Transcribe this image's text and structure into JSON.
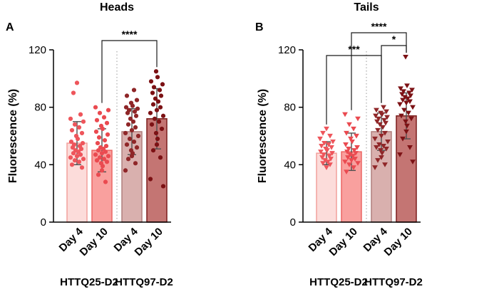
{
  "chart_data": [
    {
      "type": "bar",
      "panel_letter": "A",
      "title": "Heads",
      "ylabel": "Fluorescence (%)",
      "ylim": [
        0,
        120
      ],
      "yticks": [
        0,
        40,
        80,
        120
      ],
      "grid": false,
      "legend": "none",
      "marker": "circle",
      "categories": [
        "Day 4",
        "Day 10",
        "Day 4",
        "Day 10"
      ],
      "group_labels": [
        "HTTQ25-D2",
        "HTTQ97-D2"
      ],
      "separator_after": 1,
      "bars": [
        {
          "category": "Day 4",
          "group": "HTTQ25-D2",
          "mean": 55,
          "sd": 15,
          "fill": "#fcdcda",
          "edge": "#f2a09c",
          "point_color": "#ee555b",
          "points": [
            97,
            90,
            75,
            72,
            70,
            68,
            66,
            64,
            62,
            60,
            58,
            56,
            55,
            54,
            53,
            52,
            51,
            50,
            49,
            48,
            47,
            46,
            45,
            44,
            43,
            42,
            40,
            38
          ]
        },
        {
          "category": "Day 10",
          "group": "HTTQ25-D2",
          "mean": 50,
          "sd": 15,
          "fill": "#f9a09e",
          "edge": "#ec6663",
          "point_color": "#ea4a50",
          "points": [
            80,
            78,
            76,
            73,
            71,
            69,
            67,
            65,
            63,
            61,
            59,
            57,
            55,
            53,
            52,
            51,
            50,
            49,
            48,
            47,
            46,
            45,
            44,
            43,
            42,
            41,
            39,
            36,
            33,
            28
          ]
        },
        {
          "category": "Day 4",
          "group": "HTTQ97-D2",
          "mean": 63,
          "sd": 16,
          "fill": "#d9b0ae",
          "edge": "#b07f7d",
          "point_color": "#8f2628",
          "points": [
            92,
            88,
            85,
            83,
            81,
            80,
            79,
            78,
            77,
            76,
            74,
            72,
            70,
            68,
            66,
            64,
            62,
            60,
            58,
            56,
            54,
            52,
            50,
            48,
            46,
            44,
            41,
            36
          ]
        },
        {
          "category": "Day 10",
          "group": "HTTQ97-D2",
          "mean": 72,
          "sd": 21,
          "fill": "#c47573",
          "edge": "#7b1d1c",
          "point_color": "#7c1114",
          "points": [
            105,
            101,
            98,
            96,
            94,
            92,
            90,
            88,
            86,
            84,
            82,
            80,
            78,
            76,
            74,
            72,
            70,
            68,
            65,
            62,
            58,
            54,
            50,
            45,
            30,
            25
          ]
        }
      ],
      "significance": [
        {
          "from": 1,
          "to": 3,
          "label": "****"
        }
      ]
    },
    {
      "type": "bar",
      "panel_letter": "B",
      "title": "Tails",
      "ylabel": "Fluorescence (%)",
      "ylim": [
        0,
        120
      ],
      "yticks": [
        0,
        40,
        80,
        120
      ],
      "grid": false,
      "legend": "none",
      "marker": "triangle-down",
      "categories": [
        "Day 4",
        "Day 10",
        "Day 4",
        "Day 10"
      ],
      "group_labels": [
        "HTTQ25-D2",
        "HTTQ97-D2"
      ],
      "separator_after": 1,
      "bars": [
        {
          "category": "Day 4",
          "group": "HTTQ25-D2",
          "mean": 48,
          "sd": 8,
          "fill": "#fcdcda",
          "edge": "#f2a09c",
          "point_color": "#ee555b",
          "points": [
            65,
            62,
            60,
            58,
            56,
            55,
            54,
            53,
            52,
            51,
            50,
            49,
            48,
            47,
            46,
            45,
            44,
            43,
            42,
            41,
            40,
            38
          ]
        },
        {
          "category": "Day 10",
          "group": "HTTQ25-D2",
          "mean": 49,
          "sd": 13,
          "fill": "#f9a09e",
          "edge": "#ec6663",
          "point_color": "#ea4a50",
          "points": [
            75,
            72,
            68,
            65,
            62,
            60,
            58,
            56,
            54,
            52,
            51,
            50,
            49,
            48,
            47,
            46,
            45,
            44,
            43,
            42,
            41,
            40,
            38,
            35
          ]
        },
        {
          "category": "Day 4",
          "group": "HTTQ97-D2",
          "mean": 63,
          "sd": 13,
          "fill": "#d9b0ae",
          "edge": "#b07f7d",
          "point_color": "#8f2628",
          "points": [
            80,
            78,
            77,
            76,
            75,
            74,
            73,
            72,
            71,
            70,
            69,
            68,
            66,
            64,
            62,
            60,
            58,
            56,
            54,
            53,
            52,
            51,
            50,
            48,
            45,
            43,
            40,
            38
          ]
        },
        {
          "category": "Day 10",
          "group": "HTTQ97-D2",
          "mean": 74,
          "sd": 16,
          "fill": "#c47573",
          "edge": "#7b1d1c",
          "point_color": "#7c1114",
          "points": [
            115,
            95,
            93,
            92,
            91,
            90,
            89,
            88,
            87,
            86,
            85,
            84,
            83,
            82,
            80,
            78,
            76,
            74,
            72,
            70,
            67,
            63,
            58,
            52,
            47,
            42
          ]
        }
      ],
      "significance": [
        {
          "from": 0,
          "to": 2,
          "label": "***"
        },
        {
          "from": 1,
          "to": 3,
          "label": "****"
        },
        {
          "from": 2,
          "to": 3,
          "label": "*"
        }
      ]
    }
  ]
}
